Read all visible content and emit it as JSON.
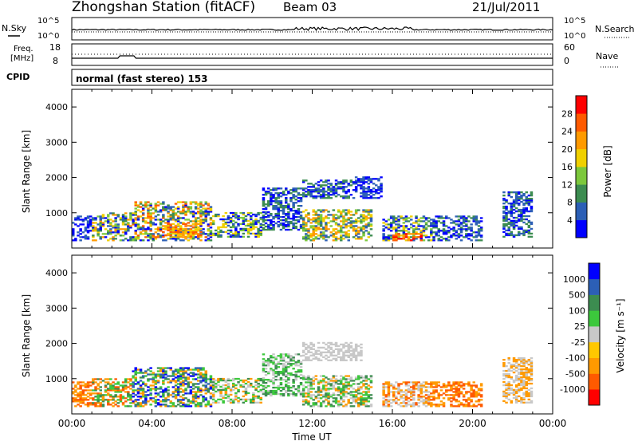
{
  "header": {
    "station": "Zhongshan Station (fitACF)",
    "beam": "Beam 03",
    "date": "21/Jul/2011"
  },
  "noise_panel": {
    "left_label": "N.Sky",
    "right_label": "N.Search",
    "ticks": [
      "10^5",
      "10^0"
    ],
    "right_ticks": [
      "10^5",
      "10^0"
    ]
  },
  "freq_panel": {
    "label_line1": "Freq.",
    "label_line2": "[MHz]",
    "ticks": [
      "18",
      "8"
    ],
    "right_label": "Nave",
    "right_ticks": [
      "60",
      "0"
    ]
  },
  "cpid_panel": {
    "label": "CPID",
    "text": "normal (fast stereo) 153"
  },
  "colors": {
    "power": [
      "#0000ff",
      "#2c5fb6",
      "#3c8c50",
      "#7cc83c",
      "#f0d000",
      "#ff9a00",
      "#ff5a00",
      "#ff0000"
    ],
    "velocity": [
      "#ff0000",
      "#ff5a00",
      "#ff9a00",
      "#ffc800",
      "#c8c8c8",
      "#3cc83c",
      "#3c8c50",
      "#2c5fb6",
      "#0000ff"
    ]
  },
  "chart_data": [
    {
      "type": "heatmap",
      "name": "power",
      "ylabel": "Slant Range [km]",
      "yticks": [
        "1000",
        "2000",
        "3000",
        "4000"
      ],
      "ylim": [
        0,
        4500
      ],
      "xlim": [
        0,
        24
      ],
      "colorbar_label": "Power [dB]",
      "colorbar_ticks": [
        "4",
        "8",
        "12",
        "16",
        "20",
        "24",
        "28"
      ],
      "scatter_regions": [
        {
          "t0": 0.0,
          "t1": 1.0,
          "r0": 200,
          "r1": 900,
          "levels": [
            1,
            2
          ]
        },
        {
          "t0": 1.0,
          "t1": 3.0,
          "r0": 200,
          "r1": 1000,
          "levels": [
            1,
            2,
            3,
            4,
            5,
            6
          ]
        },
        {
          "t0": 3.0,
          "t1": 7.0,
          "r0": 200,
          "r1": 1300,
          "levels": [
            1,
            2,
            3,
            4,
            5,
            6,
            7
          ]
        },
        {
          "t0": 4.5,
          "t1": 6.5,
          "r0": 300,
          "r1": 700,
          "levels": [
            5,
            6,
            7
          ]
        },
        {
          "t0": 7.0,
          "t1": 9.5,
          "r0": 300,
          "r1": 1000,
          "levels": [
            1,
            2,
            3,
            4,
            5
          ]
        },
        {
          "t0": 9.5,
          "t1": 11.5,
          "r0": 500,
          "r1": 1700,
          "levels": [
            1,
            2,
            3
          ]
        },
        {
          "t0": 11.5,
          "t1": 14.0,
          "r0": 1400,
          "r1": 1900,
          "levels": [
            1,
            2,
            3
          ]
        },
        {
          "t0": 11.5,
          "t1": 15.0,
          "r0": 200,
          "r1": 1100,
          "levels": [
            2,
            3,
            4,
            5,
            6
          ]
        },
        {
          "t0": 14.0,
          "t1": 15.5,
          "r0": 1400,
          "r1": 2000,
          "levels": [
            1,
            2
          ]
        },
        {
          "t0": 15.5,
          "t1": 18.0,
          "r0": 200,
          "r1": 900,
          "levels": [
            1,
            2,
            3,
            4,
            5
          ]
        },
        {
          "t0": 16.0,
          "t1": 17.5,
          "r0": 200,
          "r1": 400,
          "levels": [
            6,
            7,
            8
          ]
        },
        {
          "t0": 18.0,
          "t1": 20.5,
          "r0": 200,
          "r1": 900,
          "levels": [
            1,
            2,
            3
          ]
        },
        {
          "t0": 21.5,
          "t1": 23.0,
          "r0": 300,
          "r1": 1600,
          "levels": [
            1,
            2,
            3
          ]
        }
      ]
    },
    {
      "type": "heatmap",
      "name": "velocity",
      "ylabel": "Slant Range [km]",
      "yticks": [
        "1000",
        "2000",
        "3000",
        "4000"
      ],
      "ylim": [
        0,
        4500
      ],
      "xlim": [
        0,
        24
      ],
      "xticks": [
        "00:00",
        "04:00",
        "08:00",
        "12:00",
        "16:00",
        "20:00",
        "00:00"
      ],
      "xlabel": "Time UT",
      "colorbar_label": "Velocity [m s⁻¹]",
      "colorbar_ticks": [
        "-1000",
        "-500",
        "-100",
        "-25",
        "25",
        "100",
        "500",
        "1000"
      ],
      "scatter_regions": [
        {
          "t0": 0.0,
          "t1": 1.0,
          "r0": 200,
          "r1": 900,
          "levels": [
            3,
            2
          ]
        },
        {
          "t0": 1.0,
          "t1": 3.0,
          "r0": 200,
          "r1": 1000,
          "levels": [
            3,
            2,
            6,
            7
          ]
        },
        {
          "t0": 3.0,
          "t1": 7.0,
          "r0": 200,
          "r1": 1300,
          "levels": [
            3,
            7,
            8,
            9,
            6
          ]
        },
        {
          "t0": 7.0,
          "t1": 9.5,
          "r0": 300,
          "r1": 1000,
          "levels": [
            3,
            6,
            7,
            5
          ]
        },
        {
          "t0": 9.5,
          "t1": 11.5,
          "r0": 500,
          "r1": 1700,
          "levels": [
            6,
            7,
            5
          ]
        },
        {
          "t0": 11.5,
          "t1": 14.5,
          "r0": 1500,
          "r1": 2000,
          "levels": [
            5
          ]
        },
        {
          "t0": 11.5,
          "t1": 15.0,
          "r0": 200,
          "r1": 1100,
          "levels": [
            6,
            7,
            3,
            5
          ]
        },
        {
          "t0": 15.5,
          "t1": 18.0,
          "r0": 200,
          "r1": 900,
          "levels": [
            5,
            3,
            2
          ]
        },
        {
          "t0": 18.0,
          "t1": 20.5,
          "r0": 200,
          "r1": 900,
          "levels": [
            3,
            2
          ]
        },
        {
          "t0": 21.5,
          "t1": 23.0,
          "r0": 300,
          "r1": 1600,
          "levels": [
            5,
            3
          ]
        }
      ]
    }
  ]
}
